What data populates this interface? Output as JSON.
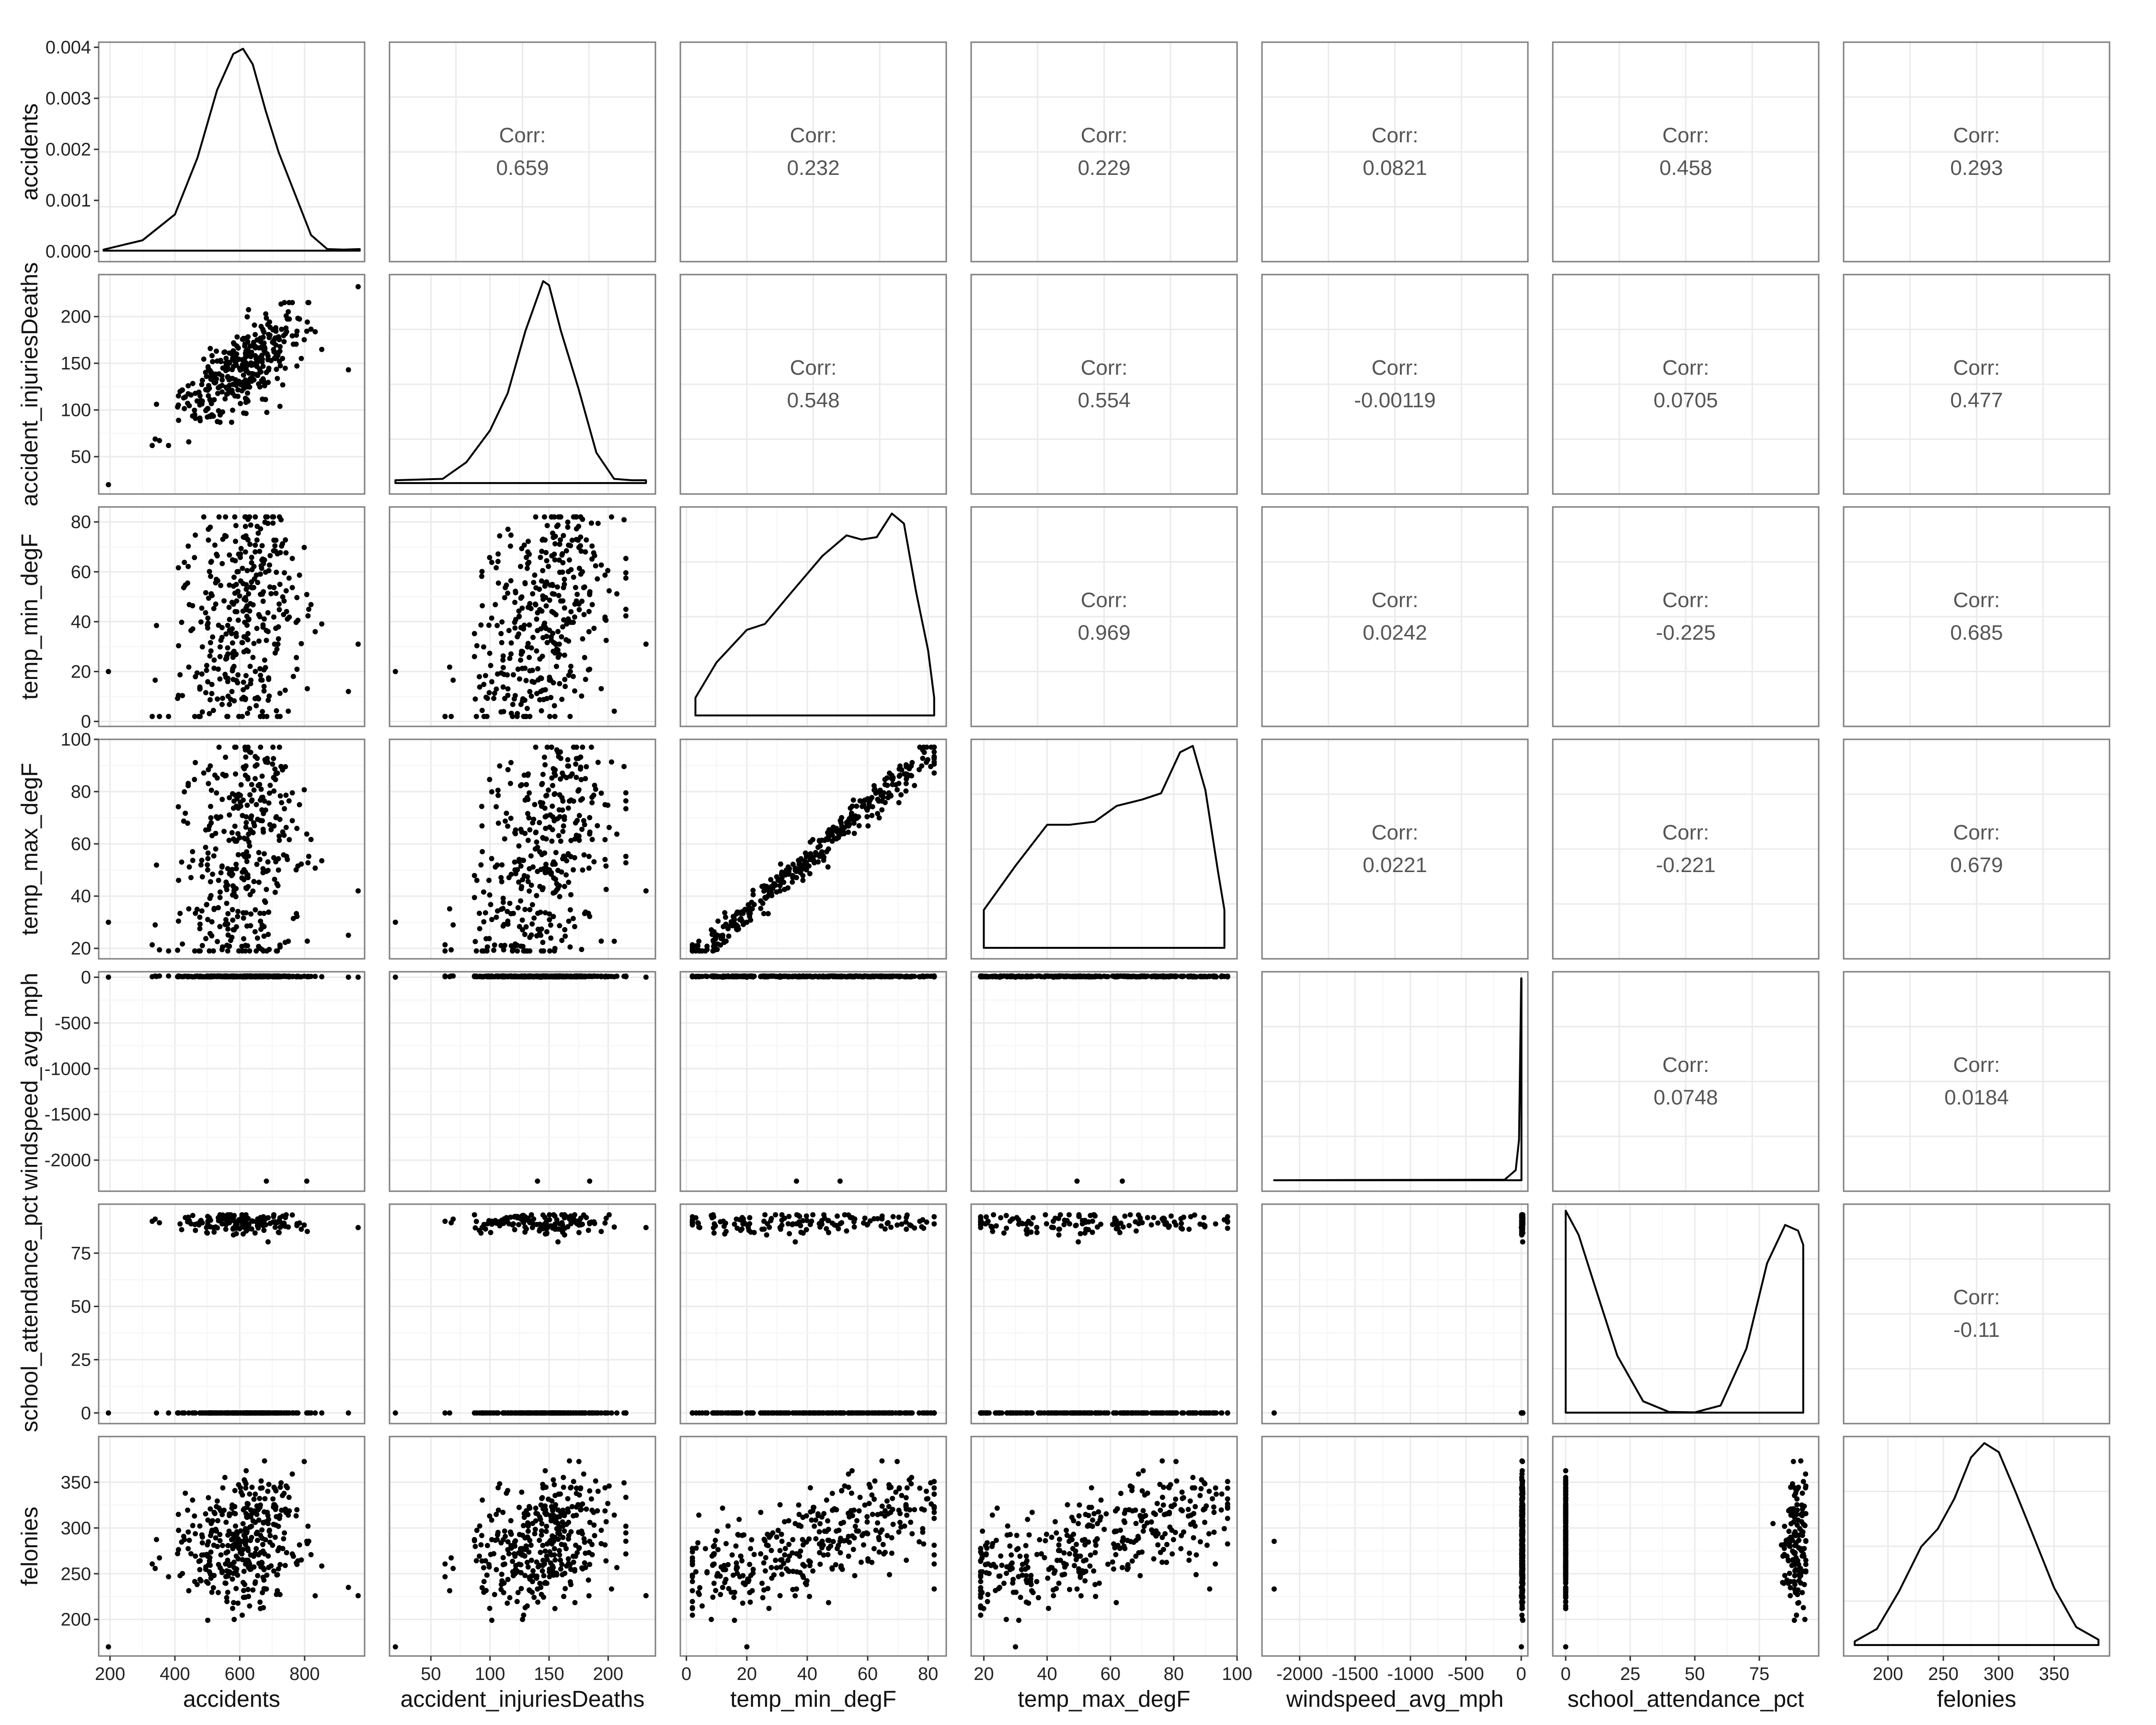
{
  "chart_data": {
    "type": "scatterplot-matrix",
    "variables": [
      "accidents",
      "accident_injuriesDeaths",
      "temp_min_degF",
      "temp_max_degF",
      "windspeed_avg_mph",
      "school_attendance_pct",
      "felonies"
    ],
    "corr_label": "Corr:",
    "correlations": [
      {
        "row": 0,
        "col": 1,
        "value": "0.659"
      },
      {
        "row": 0,
        "col": 2,
        "value": "0.232"
      },
      {
        "row": 0,
        "col": 3,
        "value": "0.229"
      },
      {
        "row": 0,
        "col": 4,
        "value": "0.0821"
      },
      {
        "row": 0,
        "col": 5,
        "value": "0.458"
      },
      {
        "row": 0,
        "col": 6,
        "value": "0.293"
      },
      {
        "row": 1,
        "col": 2,
        "value": "0.548"
      },
      {
        "row": 1,
        "col": 3,
        "value": "0.554"
      },
      {
        "row": 1,
        "col": 4,
        "value": "-0.00119"
      },
      {
        "row": 1,
        "col": 5,
        "value": "0.0705"
      },
      {
        "row": 1,
        "col": 6,
        "value": "0.477"
      },
      {
        "row": 2,
        "col": 3,
        "value": "0.969"
      },
      {
        "row": 2,
        "col": 4,
        "value": "0.0242"
      },
      {
        "row": 2,
        "col": 5,
        "value": "-0.225"
      },
      {
        "row": 2,
        "col": 6,
        "value": "0.685"
      },
      {
        "row": 3,
        "col": 4,
        "value": "0.0221"
      },
      {
        "row": 3,
        "col": 5,
        "value": "-0.221"
      },
      {
        "row": 3,
        "col": 6,
        "value": "0.679"
      },
      {
        "row": 4,
        "col": 5,
        "value": "0.0748"
      },
      {
        "row": 4,
        "col": 6,
        "value": "0.0184"
      },
      {
        "row": 5,
        "col": 6,
        "value": "-0.11"
      }
    ],
    "x_axes": [
      {
        "range": [
          165,
          985
        ],
        "ticks": [
          200,
          400,
          600,
          800
        ],
        "labels": [
          "200",
          "400",
          "600",
          "800"
        ]
      },
      {
        "range": [
          15,
          240
        ],
        "ticks": [
          50,
          100,
          150,
          200
        ],
        "labels": [
          "50",
          "100",
          "150",
          "200"
        ]
      },
      {
        "range": [
          -2,
          86
        ],
        "ticks": [
          0,
          20,
          40,
          60,
          80
        ],
        "labels": [
          "0",
          "20",
          "40",
          "60",
          "80"
        ]
      },
      {
        "range": [
          16,
          100
        ],
        "ticks": [
          20,
          40,
          60,
          80,
          100
        ],
        "labels": [
          "20",
          "40",
          "60",
          "80",
          "100"
        ]
      },
      {
        "range": [
          -2340,
          60
        ],
        "ticks": [
          -2000,
          -1500,
          -1000,
          -500,
          0
        ],
        "labels": [
          "-2000",
          "-1500",
          "-1000",
          "-500",
          "0"
        ]
      },
      {
        "range": [
          -5,
          98
        ],
        "ticks": [
          0,
          25,
          50,
          75
        ],
        "labels": [
          "0",
          "25",
          "50",
          "75"
        ]
      },
      {
        "range": [
          160,
          400
        ],
        "ticks": [
          200,
          250,
          300,
          350
        ],
        "labels": [
          "200",
          "250",
          "300",
          "350"
        ]
      }
    ],
    "y_axes": [
      {
        "range": [
          -0.0002,
          0.0041
        ],
        "ticks": [
          0,
          0.001,
          0.002,
          0.003,
          0.004
        ],
        "labels": [
          "0.000",
          "0.001",
          "0.002",
          "0.003",
          "0.004"
        ]
      },
      {
        "range": [
          10,
          245
        ],
        "ticks": [
          50,
          100,
          150,
          200
        ],
        "labels": [
          "50",
          "100",
          "150",
          "200"
        ]
      },
      {
        "range": [
          -2,
          86
        ],
        "ticks": [
          0,
          20,
          40,
          60,
          80
        ],
        "labels": [
          "0",
          "20",
          "40",
          "60",
          "80"
        ]
      },
      {
        "range": [
          16,
          100
        ],
        "ticks": [
          20,
          40,
          60,
          80,
          100
        ],
        "labels": [
          "20",
          "40",
          "60",
          "80",
          "100"
        ]
      },
      {
        "range": [
          -2340,
          60
        ],
        "ticks": [
          -2000,
          -1500,
          -1000,
          -500,
          0
        ],
        "labels": [
          "-2000",
          "-1500",
          "-1000",
          "-500",
          "0"
        ]
      },
      {
        "range": [
          -5,
          98
        ],
        "ticks": [
          0,
          25,
          50,
          75
        ],
        "labels": [
          "0",
          "25",
          "50",
          "75"
        ]
      },
      {
        "range": [
          160,
          400
        ],
        "ticks": [
          200,
          250,
          300,
          350
        ],
        "labels": [
          "200",
          "250",
          "300",
          "350"
        ]
      }
    ],
    "densities": [
      {
        "var": "accidents",
        "x": [
          180,
          300,
          400,
          470,
          530,
          580,
          610,
          640,
          680,
          720,
          770,
          820,
          870,
          920,
          970
        ],
        "y": [
          2e-05,
          0.0002,
          0.0007,
          0.0018,
          0.0031,
          0.0038,
          0.0039,
          0.0036,
          0.0027,
          0.0019,
          0.0011,
          0.0003,
          3e-05,
          2e-05,
          3e-05
        ],
        "baseline": 0
      },
      {
        "var": "accident_injuriesDeaths",
        "x": [
          20,
          60,
          80,
          100,
          115,
          130,
          145,
          150,
          160,
          175,
          190,
          205,
          220,
          232
        ],
        "y": [
          0.0002,
          0.0003,
          0.0015,
          0.0038,
          0.0065,
          0.011,
          0.0146,
          0.0143,
          0.011,
          0.0068,
          0.0022,
          0.0003,
          0.0002,
          0.0002
        ],
        "baseline": 0
      },
      {
        "var": "temp_min_degF",
        "x": [
          3,
          10,
          20,
          26,
          35,
          45,
          53,
          58,
          63,
          68,
          72,
          76,
          80,
          82
        ],
        "y": [
          0.003,
          0.009,
          0.0145,
          0.0155,
          0.021,
          0.027,
          0.0305,
          0.0298,
          0.0302,
          0.0342,
          0.0325,
          0.021,
          0.011,
          0.003
        ],
        "baseline": 0
      },
      {
        "var": "temp_max_degF",
        "x": [
          20,
          30,
          40,
          47,
          55,
          62,
          70,
          76,
          82,
          86,
          90,
          94,
          96
        ],
        "y": [
          0.006,
          0.013,
          0.0195,
          0.0195,
          0.02,
          0.0225,
          0.0235,
          0.0245,
          0.031,
          0.032,
          0.025,
          0.012,
          0.006
        ],
        "baseline": 0
      },
      {
        "var": "windspeed_avg_mph",
        "x": [
          -2230,
          -150,
          -50,
          -20,
          0,
          2
        ],
        "y": [
          0,
          0.0001,
          0.002,
          0.008,
          0.04,
          0.04
        ],
        "baseline": 0
      },
      {
        "var": "school_attendance_pct",
        "x": [
          0,
          5,
          12,
          20,
          30,
          40,
          50,
          60,
          70,
          78,
          85,
          90,
          92
        ],
        "y": [
          0.0142,
          0.0125,
          0.0085,
          0.004,
          0.0008,
          5e-05,
          2e-05,
          0.0005,
          0.0045,
          0.0105,
          0.0132,
          0.0128,
          0.0118
        ],
        "baseline": 0
      },
      {
        "var": "felonies",
        "x": [
          170,
          190,
          210,
          230,
          245,
          260,
          275,
          287,
          300,
          315,
          330,
          350,
          370,
          390
        ],
        "y": [
          0.0002,
          0.0009,
          0.003,
          0.0055,
          0.0065,
          0.0082,
          0.0105,
          0.0113,
          0.0108,
          0.0086,
          0.0063,
          0.0032,
          0.001,
          0.0003
        ],
        "baseline": 0
      }
    ]
  }
}
